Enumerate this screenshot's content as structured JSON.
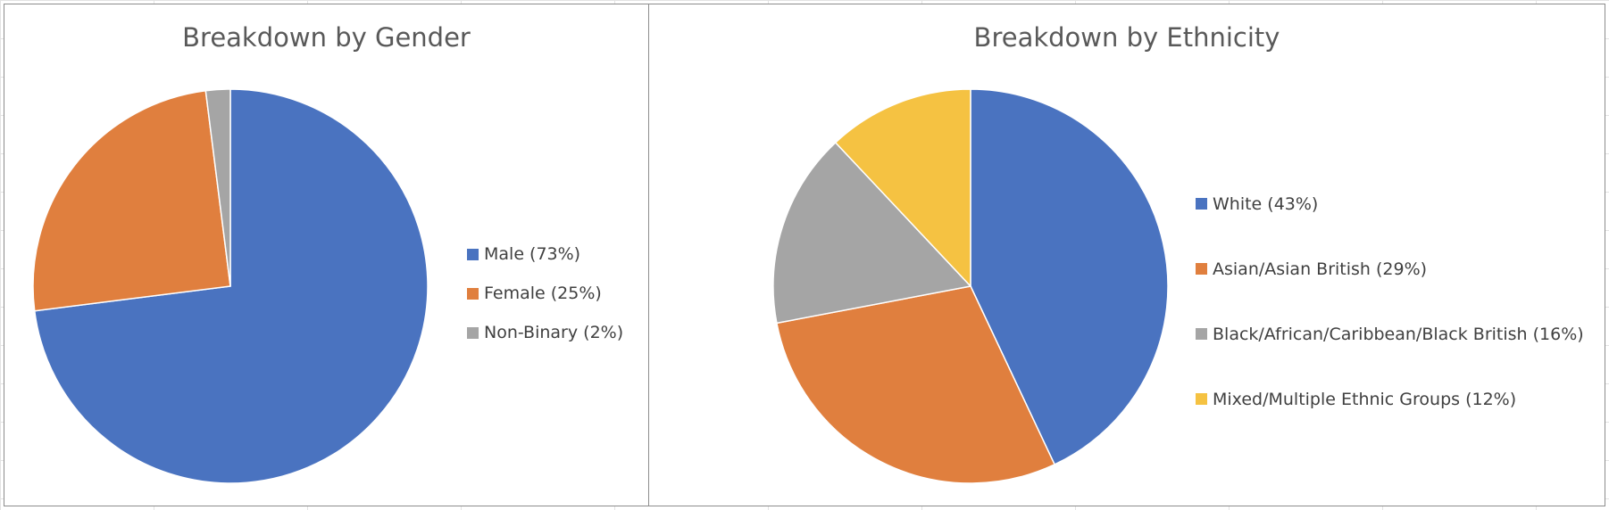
{
  "chart_data": [
    {
      "type": "pie",
      "title": "Breakdown by Gender",
      "slices": [
        {
          "label": "Male (73%)",
          "value": 73,
          "color": "#4a73c0"
        },
        {
          "label": "Female (25%)",
          "value": 25,
          "color": "#e07f3e"
        },
        {
          "label": "Non-Binary (2%)",
          "value": 2,
          "color": "#a5a5a5"
        }
      ],
      "legend_position": "right"
    },
    {
      "type": "pie",
      "title": "Breakdown by Ethnicity",
      "slices": [
        {
          "label": "White (43%)",
          "value": 43,
          "color": "#4a73c0"
        },
        {
          "label": "Asian/Asian British (29%)",
          "value": 29,
          "color": "#e07f3e"
        },
        {
          "label": "Black/African/Caribbean/Black British (16%)",
          "value": 16,
          "color": "#a5a5a5"
        },
        {
          "label": "Mixed/Multiple Ethnic Groups (12%)",
          "value": 12,
          "color": "#f5c242"
        }
      ],
      "legend_position": "right"
    }
  ]
}
